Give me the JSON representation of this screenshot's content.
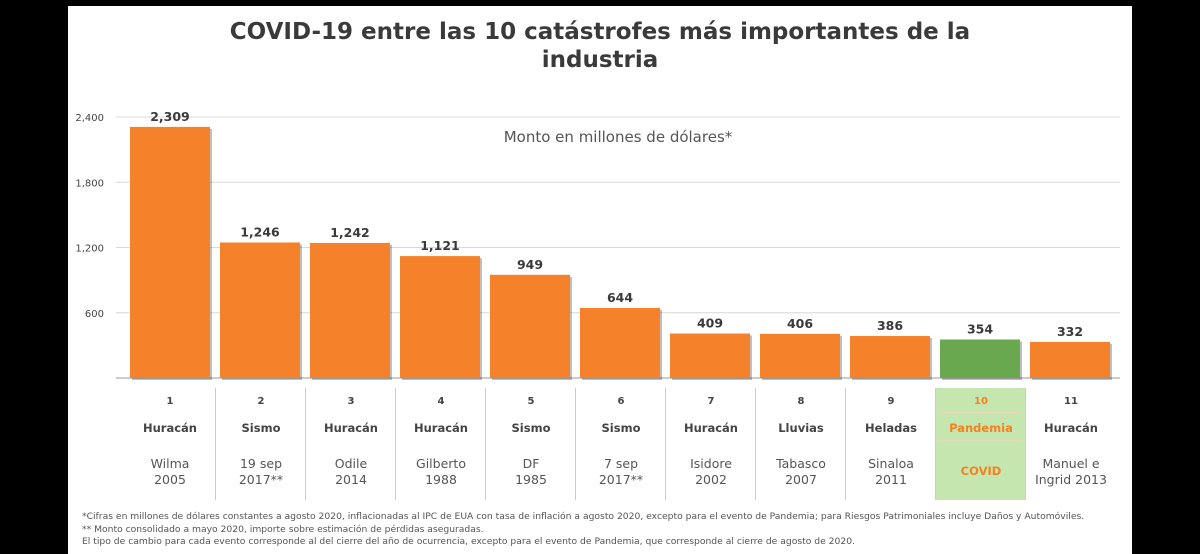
{
  "chart_data": {
    "type": "bar",
    "title": "COVID-19 entre las 10 catástrofes más importantes de la industria",
    "subtitle": "Monto en millones de dólares*",
    "ylim": [
      0,
      2400
    ],
    "yticks": [
      "2,400",
      "1,800",
      "1,200",
      "600"
    ],
    "ytick_values": [
      2400,
      1800,
      1200,
      600
    ],
    "grid": "horizontal",
    "highlight_index": 9,
    "colors": {
      "bar": "#f5822a",
      "highlight_bar": "#6aa84f",
      "highlight_bg": "#c6e6b0",
      "highlight_text": "#f58220"
    },
    "values": [
      2309,
      1246,
      1242,
      1121,
      949,
      644,
      409,
      406,
      386,
      354,
      332
    ],
    "value_labels": [
      "2,309",
      "1,246",
      "1,242",
      "1,121",
      "949",
      "644",
      "409",
      "406",
      "386",
      "354",
      "332"
    ],
    "categories": [
      {
        "rank": "1",
        "type": "Huracán",
        "name1": "Wilma",
        "name2": "2005"
      },
      {
        "rank": "2",
        "type": "Sismo",
        "name1": "19 sep",
        "name2": "2017**"
      },
      {
        "rank": "3",
        "type": "Huracán",
        "name1": "Odile",
        "name2": "2014"
      },
      {
        "rank": "4",
        "type": "Huracán",
        "name1": "Gilberto",
        "name2": "1988"
      },
      {
        "rank": "5",
        "type": "Sismo",
        "name1": "DF",
        "name2": "1985"
      },
      {
        "rank": "6",
        "type": "Sismo",
        "name1": "7 sep",
        "name2": "2017**"
      },
      {
        "rank": "7",
        "type": "Huracán",
        "name1": "Isidore",
        "name2": "2002"
      },
      {
        "rank": "8",
        "type": "Lluvias",
        "name1": "Tabasco",
        "name2": "2007"
      },
      {
        "rank": "9",
        "type": "Heladas",
        "name1": "Sinaloa",
        "name2": "2011"
      },
      {
        "rank": "10",
        "type": "Pandemia",
        "name1": "COVID",
        "name2": ""
      },
      {
        "rank": "11",
        "type": "Huracán",
        "name1": "Manuel e",
        "name2": "Ingrid 2013"
      }
    ]
  },
  "footnotes": [
    "*Cifras en millones de dólares constantes a agosto 2020, inflacionadas al IPC de EUA con tasa de inflación a agosto 2020, excepto para el evento de Pandemia; para Riesgos Patrimoniales incluye Daños y Automóviles.",
    "** Monto consolidado a mayo 2020, importe sobre estimación de pérdidas aseguradas.",
    "El tipo de cambio para cada evento corresponde al del cierre del año de ocurrencia, excepto para el evento de Pandemia, que corresponde al cierre de agosto de 2020."
  ]
}
